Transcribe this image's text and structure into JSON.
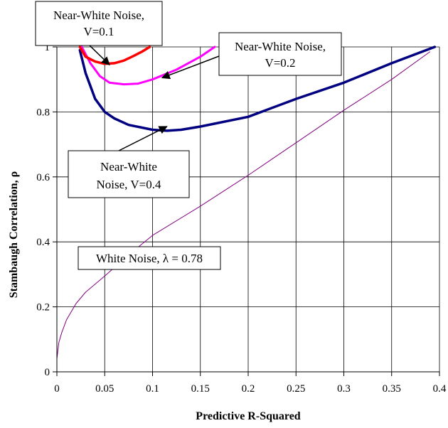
{
  "chart_data": {
    "type": "line",
    "xlabel": "Predictive R-Squared",
    "ylabel": "Stambaugh Correlation, ρ",
    "xlim": [
      0,
      0.4
    ],
    "ylim": [
      0,
      1
    ],
    "x_ticks": [
      0,
      0.05,
      0.1,
      0.15,
      0.2,
      0.25,
      0.3,
      0.35,
      0.4
    ],
    "x_tick_labels": [
      "0",
      "0.05",
      "0.1",
      "0.15",
      "0.2",
      "0.25",
      "0.3",
      "0.35",
      "0.4"
    ],
    "y_ticks": [
      0,
      0.2,
      0.4,
      0.6,
      0.8,
      1
    ],
    "y_tick_labels": [
      "0",
      "0.2",
      "0.4",
      "0.6",
      "0.8",
      "1"
    ],
    "grid": true,
    "series": [
      {
        "color": "#800080",
        "points": [
          [
            0.0,
            0.04
          ],
          [
            0.002,
            0.09
          ],
          [
            0.005,
            0.12
          ],
          [
            0.01,
            0.16
          ],
          [
            0.02,
            0.21
          ],
          [
            0.03,
            0.245
          ],
          [
            0.05,
            0.295
          ],
          [
            0.075,
            0.36
          ],
          [
            0.1,
            0.42
          ],
          [
            0.15,
            0.51
          ],
          [
            0.2,
            0.605
          ],
          [
            0.25,
            0.705
          ],
          [
            0.3,
            0.805
          ],
          [
            0.35,
            0.9
          ],
          [
            0.39,
            0.985
          ]
        ]
      },
      {
        "color": "#000080",
        "points": [
          [
            0.024,
            0.99
          ],
          [
            0.03,
            0.92
          ],
          [
            0.04,
            0.84
          ],
          [
            0.05,
            0.8
          ],
          [
            0.06,
            0.78
          ],
          [
            0.075,
            0.76
          ],
          [
            0.1,
            0.745
          ],
          [
            0.115,
            0.742
          ],
          [
            0.13,
            0.745
          ],
          [
            0.15,
            0.755
          ],
          [
            0.2,
            0.785
          ],
          [
            0.25,
            0.84
          ],
          [
            0.3,
            0.89
          ],
          [
            0.35,
            0.95
          ],
          [
            0.395,
            1.0
          ]
        ]
      },
      {
        "color": "#FF00FF",
        "points": [
          [
            0.026,
            1.0
          ],
          [
            0.035,
            0.95
          ],
          [
            0.045,
            0.91
          ],
          [
            0.055,
            0.89
          ],
          [
            0.07,
            0.885
          ],
          [
            0.085,
            0.887
          ],
          [
            0.1,
            0.9
          ],
          [
            0.125,
            0.93
          ],
          [
            0.15,
            0.97
          ],
          [
            0.165,
            1.0
          ]
        ]
      },
      {
        "color": "#FF0000",
        "points": [
          [
            0.024,
            1.0
          ],
          [
            0.03,
            0.97
          ],
          [
            0.04,
            0.955
          ],
          [
            0.05,
            0.948
          ],
          [
            0.06,
            0.95
          ],
          [
            0.07,
            0.958
          ],
          [
            0.08,
            0.972
          ],
          [
            0.09,
            0.987
          ],
          [
            0.097,
            1.0
          ]
        ]
      }
    ],
    "annotations": [
      {
        "lines": [
          "Near-White Noise,",
          "V=0.1"
        ],
        "arrow_to": [
          0.055,
          0.945
        ]
      },
      {
        "lines": [
          "Near-White Noise,",
          "V=0.2"
        ],
        "arrow_to": [
          0.11,
          0.905
        ]
      },
      {
        "lines": [
          "Near-White",
          "Noise, V=0.4"
        ],
        "arrow_to": [
          0.115,
          0.755
        ]
      },
      {
        "lines": [
          "White Noise, λ = 0.78"
        ]
      }
    ]
  }
}
